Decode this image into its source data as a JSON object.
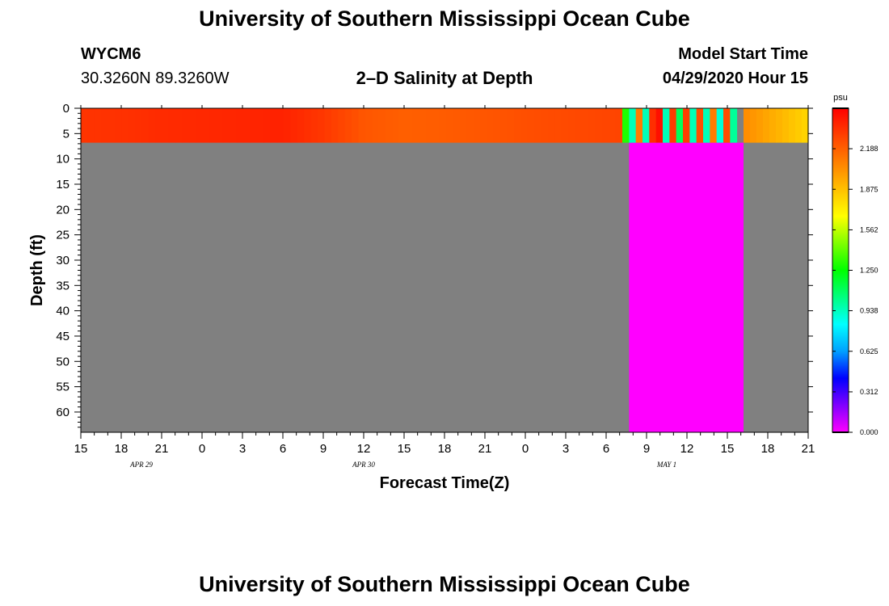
{
  "page": {
    "title_top": "University of Southern Mississippi Ocean Cube",
    "title_bottom": "University of Southern Mississippi Ocean Cube",
    "station_id": "WYCM6",
    "station_coords": "30.3260N 89.3260W",
    "plot_title": "2–D Salinity at Depth",
    "model_start_label": "Model Start Time",
    "model_start_value": "04/29/2020 Hour 15"
  },
  "colors": {
    "no_data": "#808080",
    "dry_band": "#ff00ff",
    "colormap": [
      "#ff00ff",
      "#8000ff",
      "#0000ff",
      "#00a0ff",
      "#00ffff",
      "#00ff80",
      "#00ff00",
      "#80ff00",
      "#ffff00",
      "#ffc000",
      "#ff8000",
      "#ff4000",
      "#ff0000"
    ]
  },
  "chart_data": {
    "type": "heatmap",
    "title": "2–D Salinity at Depth",
    "xlabel": "Forecast Time(Z)",
    "ylabel": "Depth (ft)",
    "x_unit": "hours since 04/29/2020 15Z",
    "xlim": [
      0,
      54
    ],
    "ylim": [
      0,
      64
    ],
    "x_ticks": [
      0,
      3,
      6,
      9,
      12,
      15,
      18,
      21,
      24,
      27,
      30,
      33,
      36,
      39,
      42,
      45,
      48,
      51,
      54
    ],
    "x_tick_labels": [
      "15",
      "18",
      "21",
      "0",
      "3",
      "6",
      "9",
      "12",
      "15",
      "18",
      "21",
      "0",
      "3",
      "6",
      "9",
      "12",
      "15",
      "18",
      "21"
    ],
    "y_ticks": [
      0,
      5,
      10,
      15,
      20,
      25,
      30,
      35,
      40,
      45,
      50,
      55,
      60
    ],
    "y_tick_labels": [
      "0",
      "5",
      "10",
      "15",
      "20",
      "25",
      "30",
      "35",
      "40",
      "45",
      "50",
      "55",
      "60"
    ],
    "date_labels": [
      {
        "label": "APR 29",
        "x": 4.5
      },
      {
        "label": "APR 30",
        "x": 21
      },
      {
        "label": "MAY 1",
        "x": 43.5
      }
    ],
    "water_depth_ft": 6.8,
    "surface_layer": {
      "hours": [
        0,
        3,
        6,
        9,
        12,
        15,
        18,
        21,
        24,
        27,
        30,
        34,
        40.2
      ],
      "salinity": [
        2.33,
        2.34,
        2.36,
        2.37,
        2.38,
        2.39,
        2.32,
        2.22,
        2.19,
        2.2,
        2.22,
        2.25,
        2.28
      ]
    },
    "oscillation": {
      "hours": [
        40.2,
        40.7,
        41.2,
        41.7,
        42.2,
        42.7,
        43.2,
        43.7,
        44.2,
        44.7,
        45.2,
        45.7,
        46.2,
        46.7,
        47.2,
        47.7,
        48.2,
        48.7
      ],
      "salinity": [
        1.3,
        0.95,
        2.1,
        0.95,
        2.35,
        2.45,
        0.95,
        2.3,
        1.1,
        2.3,
        0.95,
        2.25,
        0.95,
        2.1,
        0.9,
        2.25,
        1.0,
        1.0
      ]
    },
    "late_surface": {
      "start": 49.2,
      "end": 54,
      "salinity_start": 2.05,
      "salinity_end": 1.8
    },
    "dry_band": {
      "start": 40.7,
      "end": 49.2,
      "salinity": 0.0
    },
    "colorbar": {
      "unit": "psu",
      "min": 0,
      "max": 2.5,
      "ticks": [
        0.0,
        0.312,
        0.625,
        0.938,
        1.25,
        1.562,
        1.875,
        2.188
      ],
      "tick_labels": [
        "0.000",
        "0.312",
        "0.625",
        "0.938",
        "1.250",
        "1.562",
        "1.875",
        "2.188"
      ]
    }
  }
}
